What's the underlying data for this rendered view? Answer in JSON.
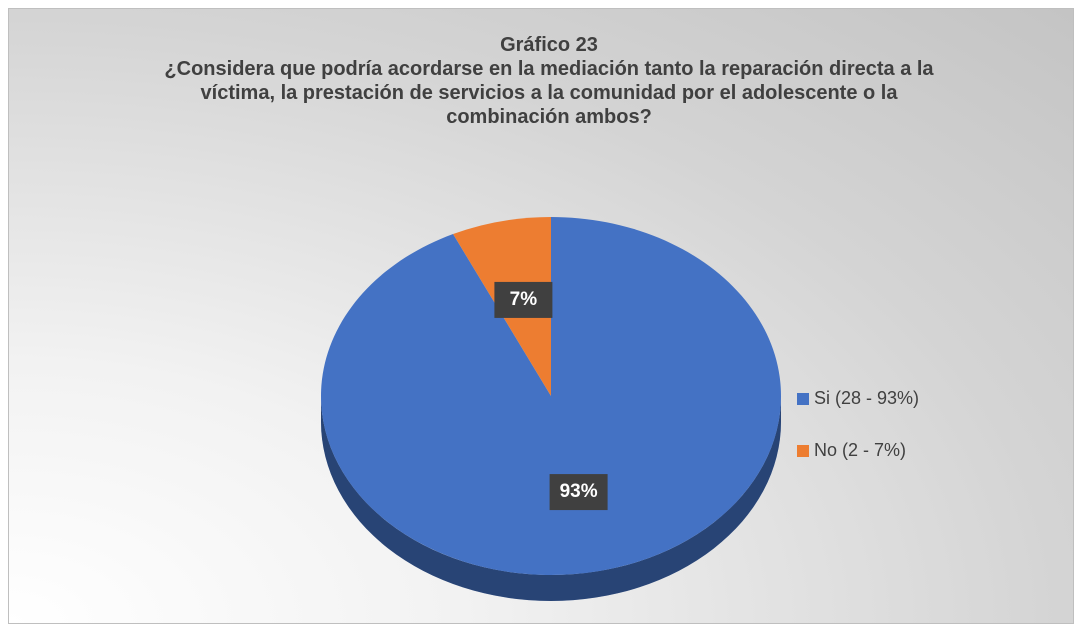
{
  "chart_data": {
    "type": "pie",
    "title": "Gráfico 23",
    "subtitle": "¿Considera que podría acordarse en la mediación tanto la reparación directa a la víctima, la prestación de servicios a la comunidad por el adolescente o la combinación ambos?",
    "categories": [
      "Si (28 - 93%)",
      "No (2 - 7%)"
    ],
    "values": [
      93,
      7
    ],
    "value_labels": [
      "93%",
      "7%"
    ],
    "colors": [
      "#4472c4",
      "#ed7d31"
    ],
    "legend": "right"
  }
}
